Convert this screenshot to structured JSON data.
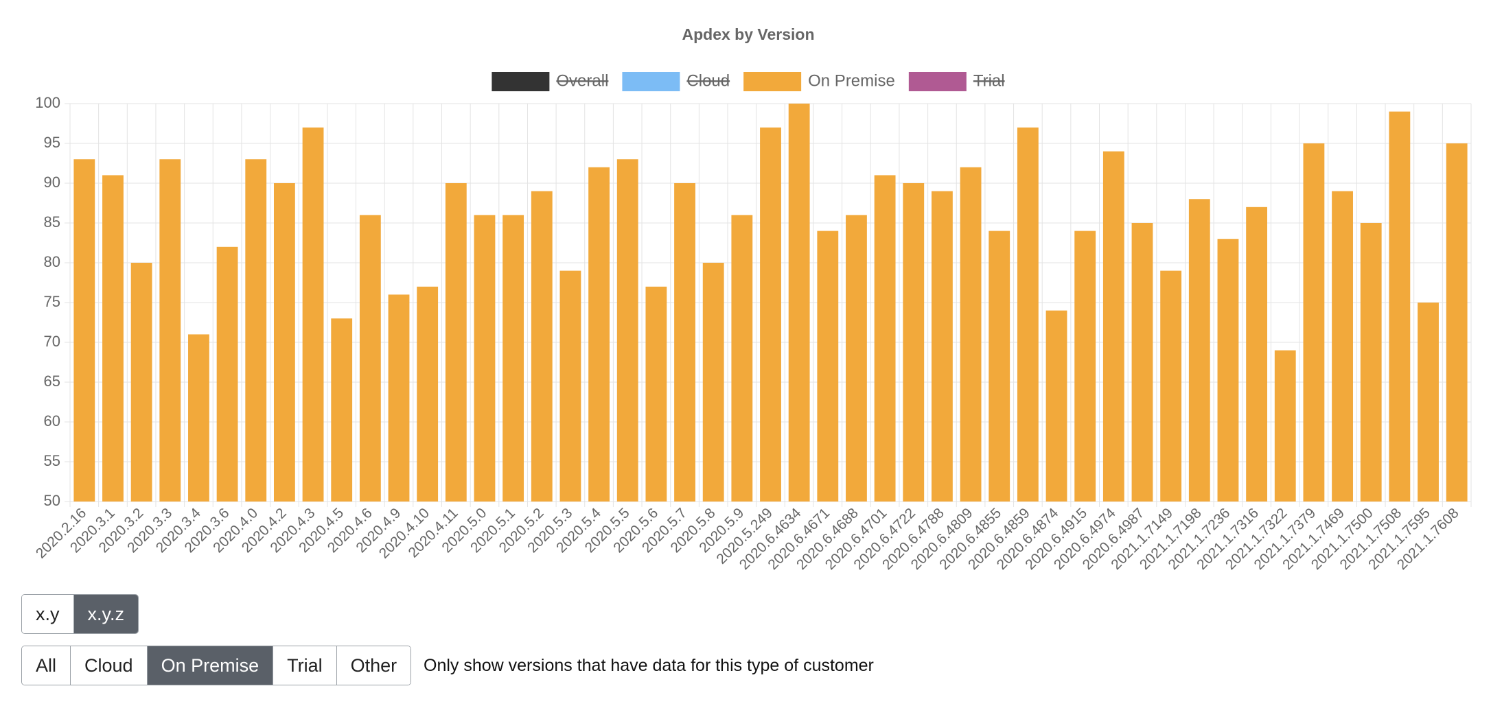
{
  "chart_data": {
    "type": "bar",
    "title": "Apdex by Version",
    "categories": [
      "2020.2.16",
      "2020.3.1",
      "2020.3.2",
      "2020.3.3",
      "2020.3.4",
      "2020.3.6",
      "2020.4.0",
      "2020.4.2",
      "2020.4.3",
      "2020.4.5",
      "2020.4.6",
      "2020.4.9",
      "2020.4.10",
      "2020.4.11",
      "2020.5.0",
      "2020.5.1",
      "2020.5.2",
      "2020.5.3",
      "2020.5.4",
      "2020.5.5",
      "2020.5.6",
      "2020.5.7",
      "2020.5.8",
      "2020.5.9",
      "2020.5.249",
      "2020.6.4634",
      "2020.6.4671",
      "2020.6.4688",
      "2020.6.4701",
      "2020.6.4722",
      "2020.6.4788",
      "2020.6.4809",
      "2020.6.4855",
      "2020.6.4859",
      "2020.6.4874",
      "2020.6.4915",
      "2020.6.4974",
      "2020.6.4987",
      "2021.1.7149",
      "2021.1.7198",
      "2021.1.7236",
      "2021.1.7316",
      "2021.1.7322",
      "2021.1.7379",
      "2021.1.7469",
      "2021.1.7500",
      "2021.1.7508",
      "2021.1.7595",
      "2021.1.7608"
    ],
    "series": [
      {
        "name": "Overall",
        "color": "#333333",
        "hidden": true
      },
      {
        "name": "Cloud",
        "color": "#7cbcf5",
        "hidden": true
      },
      {
        "name": "On Premise",
        "color": "#f2a93b",
        "hidden": false,
        "values": [
          93,
          91,
          80,
          93,
          71,
          82,
          93,
          90,
          97,
          73,
          86,
          76,
          77,
          90,
          86,
          86,
          89,
          79,
          92,
          93,
          77,
          90,
          80,
          86,
          97,
          100,
          84,
          86,
          91,
          90,
          89,
          92,
          84,
          97,
          74,
          84,
          94,
          85,
          79,
          88,
          83,
          87,
          69,
          95,
          89,
          85,
          99,
          75,
          95
        ]
      },
      {
        "name": "Trial",
        "color": "#b05a93",
        "hidden": true
      }
    ],
    "ylim": [
      50,
      100
    ],
    "yticks": [
      50,
      55,
      60,
      65,
      70,
      75,
      80,
      85,
      90,
      95,
      100
    ],
    "grid": true
  },
  "controls": {
    "version_format": {
      "options": [
        "x.y",
        "x.y.z"
      ],
      "selected": 1
    },
    "customer_type": {
      "options": [
        "All",
        "Cloud",
        "On Premise",
        "Trial",
        "Other"
      ],
      "selected": 2
    },
    "note": "Only show versions that have data for this type of customer"
  }
}
